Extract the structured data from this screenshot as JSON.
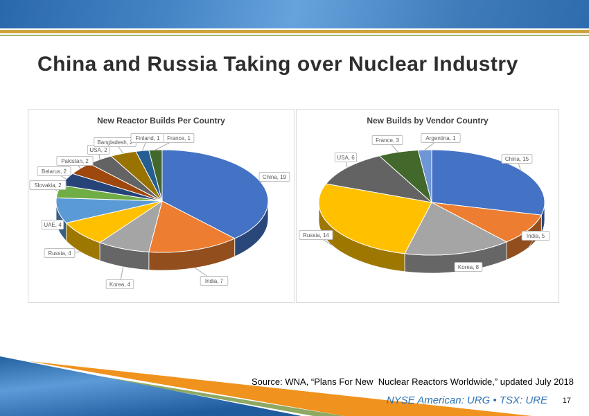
{
  "slide": {
    "title": "China and Russia Taking over Nuclear Industry",
    "source_line": "Source: WNA, “Plans For New  Nuclear Reactors Worldwide,” updated July 2018",
    "ticker_line": "NYSE American: URG • TSX: URE",
    "page_number": "17"
  },
  "colors": {
    "banner_blue_dark": "#2A68AC",
    "banner_blue_light": "#66A2DC",
    "gold_rule": "#CEA23C",
    "olive_rule": "#A8B579",
    "swoosh_orange": "#F0921E",
    "swoosh_green": "#8FA963",
    "ticker_blue": "#2E74B5",
    "label_text": "#595959",
    "label_border": "#BFBFBF",
    "leader_line": "#A6A6A6"
  },
  "chart_data": [
    {
      "type": "pie",
      "style": "3d-pie",
      "title": "New Reactor Builds Per Country",
      "start_angle": 0,
      "direction": "clockwise",
      "label_format": "{label}, {value}",
      "labels": [
        "China",
        "India",
        "Korea",
        "Russia",
        "UAE",
        "Slovakia",
        "Belarus",
        "Pakistan",
        "USA",
        "Bangladesh",
        "Finland",
        "France"
      ],
      "values": [
        19,
        7,
        4,
        4,
        4,
        2,
        2,
        2,
        2,
        2,
        1,
        1
      ],
      "colors": [
        "#4472C4",
        "#ED7D31",
        "#A5A5A5",
        "#FFC000",
        "#5B9BD5",
        "#70AD47",
        "#264478",
        "#9E480E",
        "#636363",
        "#997300",
        "#255E91",
        "#43682B"
      ]
    },
    {
      "type": "pie",
      "style": "3d-pie",
      "title": "New Builds by Vendor Country",
      "start_angle": 0,
      "direction": "clockwise",
      "label_format": "{label}, {value}",
      "labels": [
        "China",
        "India",
        "Korea",
        "Russia",
        "USA",
        "France",
        "Argentina"
      ],
      "values": [
        15,
        5,
        8,
        14,
        6,
        3,
        1
      ],
      "colors": [
        "#4472C4",
        "#ED7D31",
        "#A5A5A5",
        "#FFC000",
        "#636363",
        "#43682B",
        "#6E96D6"
      ]
    }
  ]
}
